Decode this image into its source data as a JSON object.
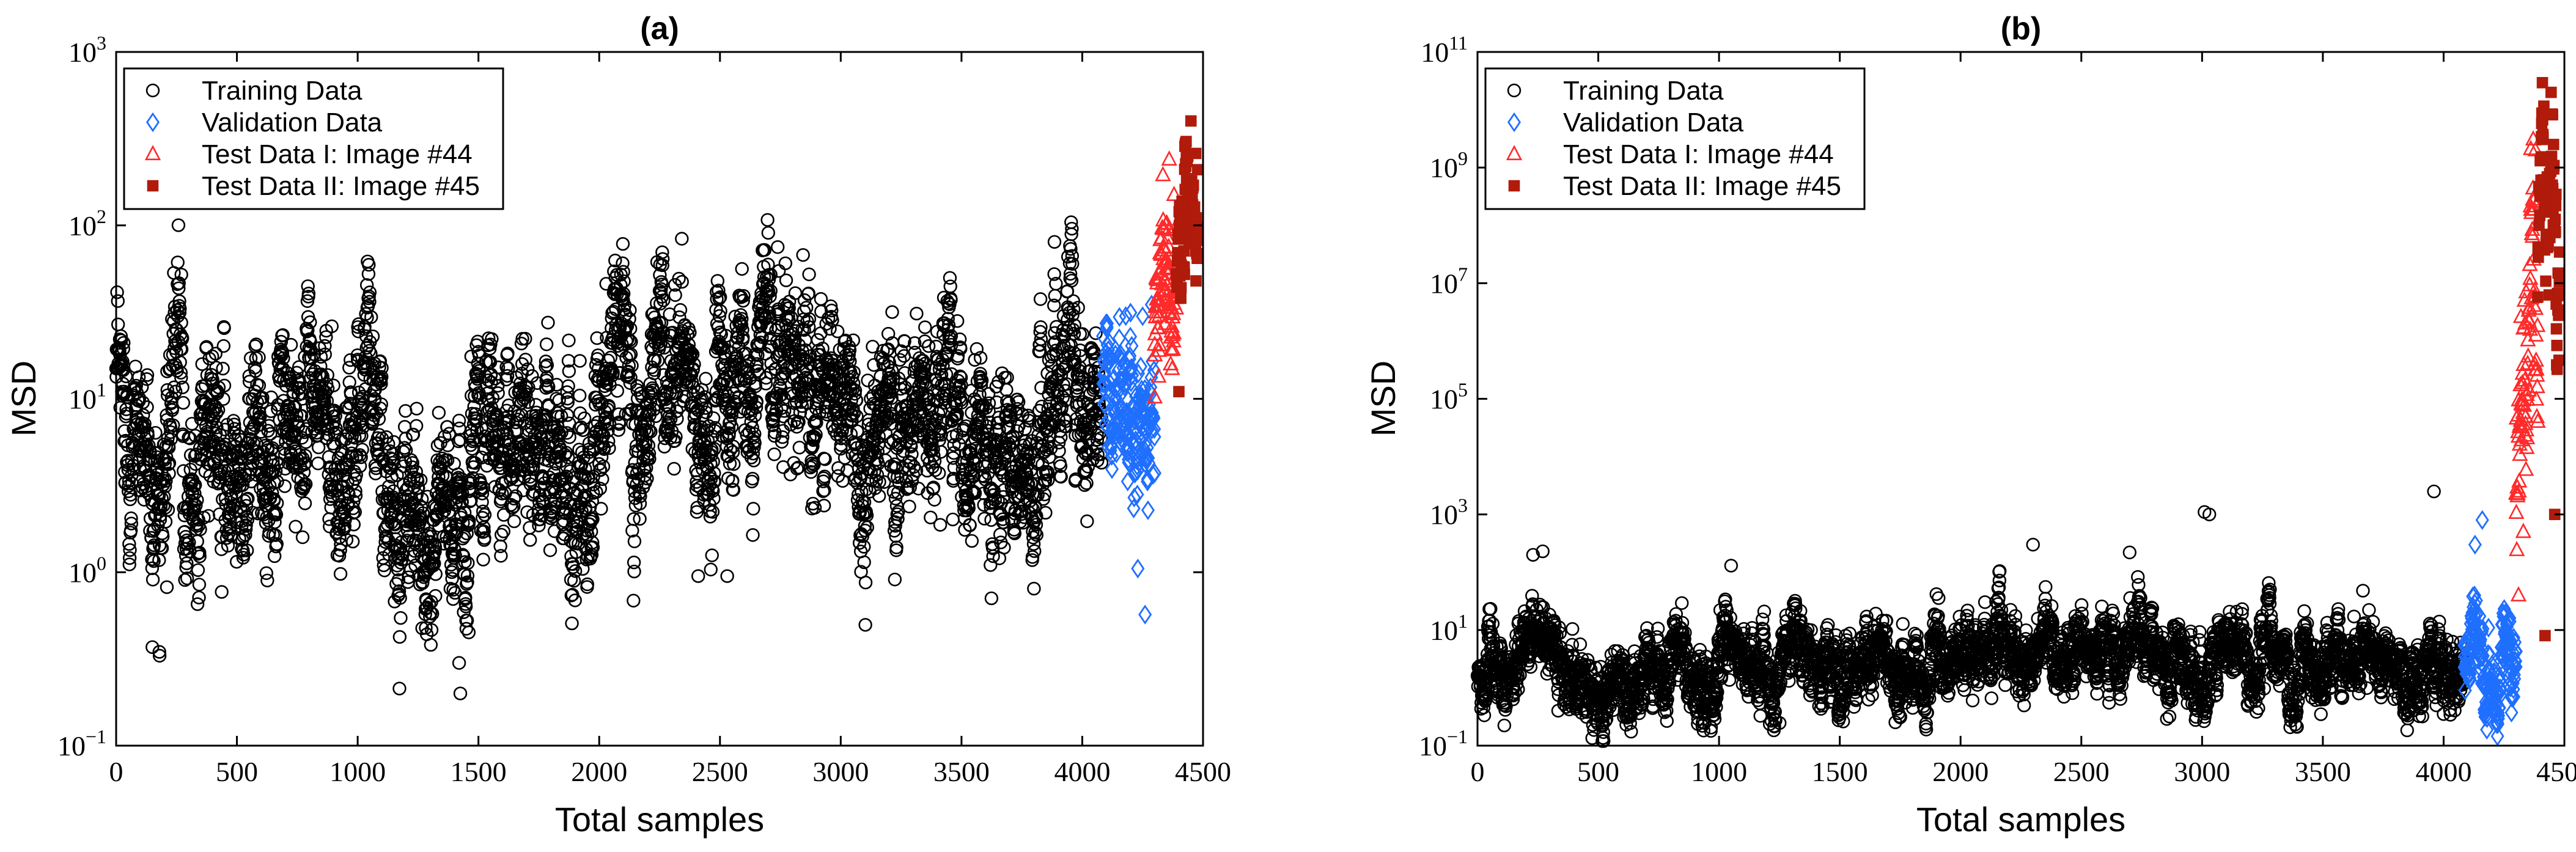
{
  "figure": {
    "colors": {
      "training": "#000000",
      "validation": "#1f6fff",
      "test1": "#ff2a2a",
      "test2": "#b01b0b"
    },
    "legend": [
      {
        "key": "training",
        "label": "Training Data",
        "marker": "circle"
      },
      {
        "key": "validation",
        "label": "Validation Data",
        "marker": "diamond"
      },
      {
        "key": "test1",
        "label": "Test Data I: Image #44",
        "marker": "triangle"
      },
      {
        "key": "test2",
        "label": "Test Data II: Image #45",
        "marker": "square"
      }
    ]
  },
  "chart_data": [
    {
      "type": "scatter",
      "title": "(a)",
      "xlabel": "Total samples",
      "ylabel": "MSD",
      "xlim": [
        0,
        4500
      ],
      "ylim": [
        0.1,
        1000
      ],
      "yscale": "log",
      "xticks": [
        0,
        500,
        1000,
        1500,
        2000,
        2500,
        3000,
        3500,
        4000,
        4500
      ],
      "yticks": [
        {
          "value": 0.1,
          "base": "10",
          "exp": "−1"
        },
        {
          "value": 1,
          "base": "10",
          "exp": "0"
        },
        {
          "value": 10,
          "base": "10",
          "exp": "1"
        },
        {
          "value": 100,
          "base": "10",
          "exp": "2"
        },
        {
          "value": 1000,
          "base": "10",
          "exp": "3"
        }
      ],
      "legend_position": "top-left",
      "series": [
        {
          "name": "Training Data",
          "key": "training",
          "marker": "circle",
          "x_range": [
            0,
            4080
          ],
          "count": 4081,
          "profile": [
            [
              0,
              10
            ],
            [
              100,
              8
            ],
            [
              150,
              2.5
            ],
            [
              250,
              15
            ],
            [
              300,
              4
            ],
            [
              500,
              5
            ],
            [
              700,
              5
            ],
            [
              800,
              10
            ],
            [
              950,
              4
            ],
            [
              1050,
              25
            ],
            [
              1150,
              3
            ],
            [
              1250,
              2.5
            ],
            [
              1350,
              2
            ],
            [
              1450,
              1.8
            ],
            [
              1500,
              8
            ],
            [
              1700,
              5
            ],
            [
              1950,
              3
            ],
            [
              2050,
              25
            ],
            [
              2150,
              7
            ],
            [
              2250,
              25
            ],
            [
              2400,
              6
            ],
            [
              2600,
              12
            ],
            [
              2750,
              22
            ],
            [
              2850,
              8
            ],
            [
              3000,
              12
            ],
            [
              3100,
              6
            ],
            [
              3400,
              9
            ],
            [
              3600,
              7
            ],
            [
              3750,
              4
            ],
            [
              3850,
              7
            ],
            [
              3950,
              12
            ],
            [
              4080,
              10
            ]
          ],
          "spread_decades": 0.28,
          "notable_points": [
            [
              150,
              0.37
            ],
            [
              180,
              0.33
            ],
            [
              210,
              0.82
            ],
            [
              270,
              52
            ],
            [
              1425,
              0.2
            ],
            [
              1420,
              0.3
            ],
            [
              1460,
              0.45
            ],
            [
              2090,
              52
            ],
            [
              2710,
              52
            ],
            [
              3620,
              1.1
            ],
            [
              2410,
              0.95
            ],
            [
              2530,
              0.95
            ]
          ]
        },
        {
          "name": "Validation Data",
          "key": "validation",
          "marker": "diamond",
          "x_range": [
            4085,
            4300
          ],
          "count": 216,
          "profile": [
            [
              4085,
              15
            ],
            [
              4150,
              12
            ],
            [
              4200,
              8
            ],
            [
              4250,
              5
            ],
            [
              4300,
              8
            ]
          ],
          "spread_decades": 0.25,
          "notable_points": [
            [
              4180,
              30
            ],
            [
              4230,
              1.05
            ],
            [
              4260,
              0.57
            ],
            [
              4220,
              3.8
            ]
          ]
        },
        {
          "name": "Test Data I: Image #44",
          "key": "test1",
          "marker": "triangle",
          "x_range": [
            4300,
            4390
          ],
          "count": 91,
          "profile": [
            [
              4300,
              25
            ],
            [
              4340,
              60
            ],
            [
              4390,
              100
            ]
          ],
          "spread_decades": 0.22,
          "notable_points": [
            [
              4300,
              10.2
            ],
            [
              4360,
              240
            ],
            [
              4380,
              150
            ]
          ]
        },
        {
          "name": "Test Data II: Image #45",
          "key": "test2",
          "marker": "square",
          "x_range": [
            4390,
            4480
          ],
          "count": 91,
          "profile": [
            [
              4390,
              80
            ],
            [
              4440,
              130
            ],
            [
              4480,
              110
            ]
          ],
          "spread_decades": 0.2,
          "notable_points": [
            [
              4450,
              400
            ],
            [
              4400,
              11
            ],
            [
              4470,
              260
            ]
          ]
        }
      ]
    },
    {
      "type": "scatter",
      "title": "(b)",
      "xlabel": "Total samples",
      "ylabel": "MSD",
      "xlim": [
        0,
        4500
      ],
      "ylim": [
        0.1,
        100000000000
      ],
      "yscale": "log",
      "xticks": [
        0,
        500,
        1000,
        1500,
        2000,
        2500,
        3000,
        3500,
        4000,
        4500
      ],
      "yticks": [
        {
          "value": 0.1,
          "base": "10",
          "exp": "−1"
        },
        {
          "value": 10,
          "base": "10",
          "exp": "1"
        },
        {
          "value": 1000,
          "base": "10",
          "exp": "3"
        },
        {
          "value": 100000,
          "base": "10",
          "exp": "5"
        },
        {
          "value": 10000000,
          "base": "10",
          "exp": "7"
        },
        {
          "value": 1000000000,
          "base": "10",
          "exp": "9"
        },
        {
          "value": 100000000000,
          "base": "10",
          "exp": "11"
        }
      ],
      "legend_position": "top-left",
      "series": [
        {
          "name": "Training Data",
          "key": "training",
          "marker": "circle",
          "x_range": [
            0,
            4080
          ],
          "count": 4081,
          "profile": [
            [
              0,
              1.5
            ],
            [
              150,
              1.5
            ],
            [
              230,
              20
            ],
            [
              280,
              3
            ],
            [
              400,
              1.5
            ],
            [
              1000,
              2
            ],
            [
              1050,
              5
            ],
            [
              1150,
              1.5
            ],
            [
              2000,
              3
            ],
            [
              2100,
              5
            ],
            [
              2250,
              4
            ],
            [
              2500,
              3
            ],
            [
              2750,
              10
            ],
            [
              2850,
              1.5
            ],
            [
              3050,
              4
            ],
            [
              3400,
              2
            ],
            [
              3900,
              1.5
            ],
            [
              4000,
              2
            ],
            [
              4080,
              1.5
            ]
          ],
          "spread_decades": 0.35,
          "notable_points": [
            [
              230,
              200
            ],
            [
              270,
              230
            ],
            [
              1050,
              130
            ],
            [
              3010,
              1100
            ],
            [
              3030,
              1000
            ],
            [
              3960,
              2500
            ],
            [
              2700,
              220
            ],
            [
              2300,
              300
            ]
          ]
        },
        {
          "name": "Validation Data",
          "key": "validation",
          "marker": "diamond",
          "x_range": [
            4085,
            4300
          ],
          "count": 216,
          "profile": [
            [
              4085,
              4
            ],
            [
              4150,
              4
            ],
            [
              4200,
              3
            ],
            [
              4300,
              2
            ]
          ],
          "spread_decades": 0.4,
          "notable_points": [
            [
              4160,
              800
            ],
            [
              4130,
              300
            ],
            [
              4290,
              0.7
            ]
          ]
        },
        {
          "name": "Test Data I: Image #44",
          "key": "test1",
          "marker": "triangle",
          "x_range": [
            4300,
            4390
          ],
          "count": 91,
          "profile": [
            [
              4300,
              10000
            ],
            [
              4340,
              10000000
            ],
            [
              4390,
              100000000
            ]
          ],
          "spread_decades": 1.1,
          "notable_points": [
            [
              4310,
              40
            ],
            [
              4330,
              500
            ],
            [
              4380,
              2000000000
            ]
          ]
        },
        {
          "name": "Test Data II: Image #45",
          "key": "test2",
          "marker": "square",
          "x_range": [
            4390,
            4480
          ],
          "count": 91,
          "profile": [
            [
              4390,
              100000000
            ],
            [
              4440,
              300000000
            ],
            [
              4480,
              200000000
            ]
          ],
          "spread_decades": 1.1,
          "notable_points": [
            [
              4445,
              20000000000
            ],
            [
              4420,
              8
            ],
            [
              4460,
              1000
            ]
          ]
        }
      ]
    }
  ]
}
